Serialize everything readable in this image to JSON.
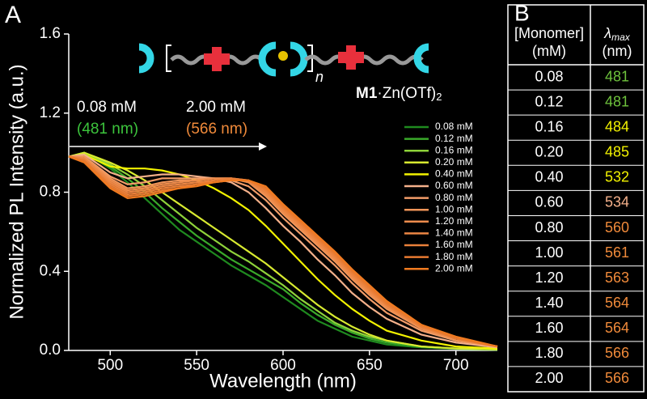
{
  "chart_data": {
    "type": "line",
    "panel_label": "A",
    "xlabel": "Wavelength (nm)",
    "ylabel": "Normalized PL Intensity (a.u.)",
    "xlim": [
      476,
      724
    ],
    "xticks": [
      500,
      550,
      600,
      650,
      700
    ],
    "ylim": [
      0,
      1.6
    ],
    "yticks": [
      {
        "value": 0,
        "label": "0.0"
      },
      0.4,
      0.8,
      1.2,
      1.6
    ],
    "annotations": [
      {
        "text": "0.08 mM",
        "color": "#ffffff"
      },
      {
        "text": "(481 nm)",
        "color": "#3cc43c"
      },
      {
        "text": "2.00 mM",
        "color": "#ffffff"
      },
      {
        "text": "(566 nm)",
        "color": "#f08a3a"
      }
    ],
    "compound": {
      "main": "M1",
      "rest": "·Zn(OTf)",
      "sub": "2",
      "repeat": "n"
    },
    "x": [
      476,
      485,
      500,
      510,
      520,
      530,
      540,
      550,
      560,
      570,
      580,
      590,
      600,
      610,
      620,
      630,
      640,
      650,
      660,
      680,
      700,
      724
    ],
    "series": [
      {
        "name": "0.08 mM",
        "color": "#1f8a1f",
        "values": [
          0.98,
          1.0,
          0.92,
          0.85,
          0.77,
          0.69,
          0.61,
          0.55,
          0.49,
          0.43,
          0.38,
          0.33,
          0.27,
          0.21,
          0.15,
          0.11,
          0.07,
          0.05,
          0.03,
          0.015,
          0.008,
          0.003
        ]
      },
      {
        "name": "0.12 mM",
        "color": "#3aaa2a",
        "values": [
          0.98,
          1.0,
          0.93,
          0.87,
          0.8,
          0.72,
          0.65,
          0.58,
          0.52,
          0.46,
          0.41,
          0.36,
          0.31,
          0.24,
          0.18,
          0.13,
          0.09,
          0.06,
          0.04,
          0.02,
          0.01,
          0.004
        ]
      },
      {
        "name": "0.16 mM",
        "color": "#8ed23a",
        "values": [
          0.98,
          1.0,
          0.94,
          0.89,
          0.83,
          0.76,
          0.69,
          0.62,
          0.56,
          0.5,
          0.45,
          0.39,
          0.33,
          0.26,
          0.2,
          0.14,
          0.1,
          0.07,
          0.05,
          0.02,
          0.01,
          0.005
        ]
      },
      {
        "name": "0.20 mM",
        "color": "#d8ea30",
        "values": [
          0.98,
          1.0,
          0.95,
          0.91,
          0.86,
          0.8,
          0.74,
          0.68,
          0.62,
          0.56,
          0.5,
          0.44,
          0.37,
          0.3,
          0.23,
          0.17,
          0.12,
          0.08,
          0.05,
          0.02,
          0.01,
          0.005
        ]
      },
      {
        "name": "0.40 mM",
        "color": "#f2f200",
        "values": [
          0.98,
          0.99,
          0.93,
          0.92,
          0.92,
          0.91,
          0.89,
          0.86,
          0.82,
          0.77,
          0.71,
          0.63,
          0.54,
          0.45,
          0.36,
          0.28,
          0.21,
          0.15,
          0.1,
          0.05,
          0.02,
          0.01
        ]
      },
      {
        "name": "0.60 mM",
        "color": "#f4b08a",
        "values": [
          0.98,
          0.99,
          0.9,
          0.87,
          0.88,
          0.89,
          0.89,
          0.88,
          0.87,
          0.85,
          0.8,
          0.72,
          0.63,
          0.55,
          0.46,
          0.38,
          0.29,
          0.22,
          0.16,
          0.08,
          0.04,
          0.015
        ]
      },
      {
        "name": "0.80 mM",
        "color": "#f29c68",
        "values": [
          0.98,
          0.98,
          0.88,
          0.84,
          0.85,
          0.87,
          0.87,
          0.87,
          0.87,
          0.86,
          0.83,
          0.76,
          0.67,
          0.59,
          0.51,
          0.43,
          0.34,
          0.26,
          0.19,
          0.1,
          0.05,
          0.02
        ]
      },
      {
        "name": "1.00 mM",
        "color": "#f09458",
        "values": [
          0.98,
          0.98,
          0.87,
          0.82,
          0.83,
          0.85,
          0.86,
          0.86,
          0.87,
          0.87,
          0.85,
          0.78,
          0.69,
          0.61,
          0.53,
          0.45,
          0.36,
          0.28,
          0.21,
          0.11,
          0.05,
          0.02
        ]
      },
      {
        "name": "1.20 mM",
        "color": "#ee8c4c",
        "values": [
          0.98,
          0.97,
          0.86,
          0.81,
          0.82,
          0.84,
          0.85,
          0.86,
          0.87,
          0.87,
          0.85,
          0.79,
          0.7,
          0.62,
          0.54,
          0.46,
          0.37,
          0.29,
          0.22,
          0.11,
          0.06,
          0.02
        ]
      },
      {
        "name": "1.40 mM",
        "color": "#ec8644",
        "values": [
          0.98,
          0.97,
          0.85,
          0.8,
          0.81,
          0.83,
          0.84,
          0.85,
          0.86,
          0.87,
          0.86,
          0.8,
          0.71,
          0.63,
          0.55,
          0.47,
          0.38,
          0.3,
          0.23,
          0.12,
          0.06,
          0.02
        ]
      },
      {
        "name": "1.60 mM",
        "color": "#ea803a",
        "values": [
          0.98,
          0.96,
          0.84,
          0.79,
          0.8,
          0.82,
          0.83,
          0.84,
          0.86,
          0.87,
          0.86,
          0.81,
          0.72,
          0.64,
          0.56,
          0.48,
          0.39,
          0.31,
          0.23,
          0.12,
          0.06,
          0.02
        ]
      },
      {
        "name": "1.80 mM",
        "color": "#e87a30",
        "values": [
          0.98,
          0.96,
          0.83,
          0.78,
          0.79,
          0.81,
          0.82,
          0.84,
          0.85,
          0.86,
          0.86,
          0.82,
          0.73,
          0.65,
          0.57,
          0.49,
          0.4,
          0.32,
          0.24,
          0.13,
          0.06,
          0.02
        ]
      },
      {
        "name": "2.00 mM",
        "color": "#f07a20",
        "values": [
          0.98,
          0.95,
          0.82,
          0.77,
          0.78,
          0.8,
          0.82,
          0.83,
          0.85,
          0.86,
          0.86,
          0.83,
          0.74,
          0.66,
          0.58,
          0.5,
          0.41,
          0.33,
          0.25,
          0.13,
          0.07,
          0.02
        ]
      }
    ]
  },
  "table": {
    "panel_label": "B",
    "header": {
      "col1": [
        "[Monomer]",
        "(mM)"
      ],
      "col2_symbol": "λ",
      "col2_sub": "max",
      "col2_unit": "(nm)"
    },
    "rows": [
      {
        "conc": "0.08",
        "lambda": "481",
        "color": "#6ec23c"
      },
      {
        "conc": "0.12",
        "lambda": "481",
        "color": "#6ec23c"
      },
      {
        "conc": "0.16",
        "lambda": "484",
        "color": "#f2f200"
      },
      {
        "conc": "0.20",
        "lambda": "485",
        "color": "#f2f200"
      },
      {
        "conc": "0.40",
        "lambda": "532",
        "color": "#f2f200"
      },
      {
        "conc": "0.60",
        "lambda": "534",
        "color": "#f4b08a"
      },
      {
        "conc": "0.80",
        "lambda": "560",
        "color": "#f08a3a"
      },
      {
        "conc": "1.00",
        "lambda": "561",
        "color": "#f08a3a"
      },
      {
        "conc": "1.20",
        "lambda": "563",
        "color": "#f08a3a"
      },
      {
        "conc": "1.40",
        "lambda": "564",
        "color": "#f08a3a"
      },
      {
        "conc": "1.60",
        "lambda": "564",
        "color": "#f08a3a"
      },
      {
        "conc": "1.80",
        "lambda": "566",
        "color": "#f08a3a"
      },
      {
        "conc": "2.00",
        "lambda": "566",
        "color": "#f08a3a"
      }
    ]
  }
}
